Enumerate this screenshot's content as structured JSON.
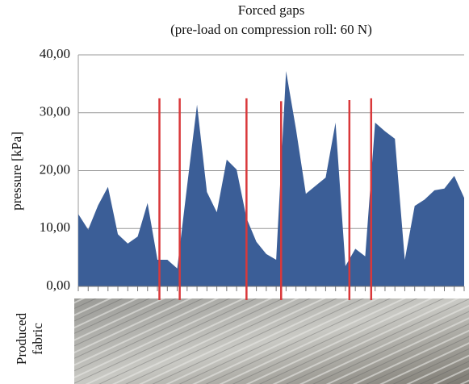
{
  "chart_data": {
    "type": "area",
    "title": "Forced gaps",
    "subtitle": "(pre-load on compression roll: 60 N)",
    "y_label": "pressure [kPa]",
    "categories": [
      null,
      null,
      null,
      null,
      null,
      null,
      null,
      null,
      null,
      null,
      null,
      null,
      null,
      null,
      null,
      null,
      null,
      null,
      null,
      null,
      null,
      null,
      null,
      null,
      null,
      null,
      null,
      null,
      null,
      null,
      null,
      null,
      null,
      null,
      null,
      null,
      null,
      null,
      null,
      null
    ],
    "values": [
      12.5,
      9.8,
      14,
      17.2,
      9,
      7.4,
      8.6,
      14.4,
      4.6,
      4.6,
      3.1,
      17.4,
      31.4,
      16.3,
      12.8,
      21.9,
      20.2,
      11.8,
      7.7,
      5.6,
      4.6,
      37.2,
      27.2,
      16,
      17.4,
      18.8,
      28.3,
      3.5,
      6.5,
      5.2,
      28.3,
      26.8,
      25.5,
      4.6,
      13.9,
      15,
      16.6,
      16.9,
      19.1,
      15.3
    ],
    "color": "#3b5e97",
    "ylim": [
      0,
      40
    ],
    "yticks": [
      {
        "value": 0,
        "label": "0,00"
      },
      {
        "value": 10,
        "label": "10,00"
      },
      {
        "value": 20,
        "label": "20,00"
      },
      {
        "value": 30,
        "label": "30,00"
      },
      {
        "value": 40,
        "label": "40,00"
      }
    ],
    "grid": true,
    "gap_markers": {
      "color": "#d9383a",
      "x": [
        8.2,
        10.25,
        17,
        20.5,
        27.4,
        29.6
      ],
      "top": [
        32.5,
        32.5,
        32.5,
        32,
        32.2,
        32.5
      ]
    },
    "photo_caption": [
      "Produced",
      "fabric"
    ]
  }
}
